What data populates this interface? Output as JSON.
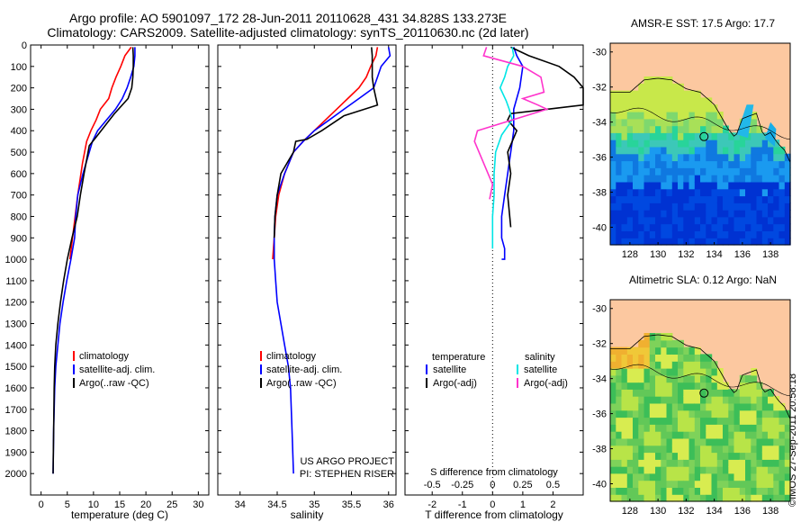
{
  "header": {
    "line1": "Argo profile: AO 5901097_172 28-Jun-2011 20110628_431 34.828S 133.273E",
    "line2": "Climatology: CARS2009. Satellite-adjusted climatology: synTS_20110630.nc (2d later)"
  },
  "stamp": "©IMOS 27-Sep-2011 20:58:18",
  "colors": {
    "climatology": "#ff0000",
    "satellite": "#0000ff",
    "argo": "#000000",
    "sal_satellite": "#00e5e5",
    "sal_argo": "#ff33cc",
    "land": "#fcc8a0"
  },
  "chart_data": [
    {
      "type": "line",
      "title": "",
      "xlabel": "temperature (deg C)",
      "ylabel": "",
      "xlim": [
        -2,
        32
      ],
      "ylim": [
        2100,
        0
      ],
      "y_axis_inverted": true,
      "xticks": [
        0,
        5,
        10,
        15,
        20,
        25,
        30
      ],
      "yticks": [
        0,
        100,
        200,
        300,
        400,
        500,
        600,
        700,
        800,
        900,
        1000,
        1100,
        1200,
        1300,
        1400,
        1500,
        1600,
        1700,
        1800,
        1900,
        2000
      ],
      "legend": [
        "climatology",
        "satellite-adj. clim.",
        "Argo(..raw -QC)"
      ],
      "series": [
        {
          "name": "climatology",
          "color": "red",
          "x": [
            17.2,
            16.0,
            15.2,
            14.3,
            13.5,
            12.9,
            11.3,
            10.5,
            9.5,
            8.7,
            7.9,
            7.0,
            6.5,
            5.5
          ],
          "y": [
            10,
            50,
            100,
            150,
            200,
            250,
            300,
            350,
            400,
            450,
            550,
            700,
            800,
            1000
          ]
        },
        {
          "name": "satellite-adj. clim.",
          "color": "blue",
          "x": [
            17.9,
            17.9,
            17.7,
            17.1,
            16.4,
            15.5,
            14.2,
            12.5,
            10.8,
            9.8,
            8.0,
            7.0,
            6.6,
            6.4,
            5.7,
            4.9,
            4.2,
            3.6,
            3.2,
            2.8,
            2.6,
            2.4,
            2.3
          ],
          "y": [
            10,
            50,
            100,
            150,
            200,
            250,
            300,
            350,
            400,
            450,
            600,
            700,
            800,
            900,
            1000,
            1100,
            1200,
            1300,
            1400,
            1500,
            1600,
            1800,
            2000
          ]
        },
        {
          "name": "Argo(..raw -QC)",
          "color": "black",
          "x": [
            17.5,
            17.6,
            17.6,
            17.5,
            17.3,
            16.6,
            14.0,
            10.5,
            9.2,
            8.2,
            7.5,
            6.9,
            5.9,
            5.0,
            4.3,
            3.7,
            3.2,
            2.8,
            2.6,
            2.5,
            2.4,
            2.3
          ],
          "y": [
            10,
            50,
            100,
            150,
            200,
            250,
            320,
            430,
            470,
            600,
            700,
            800,
            900,
            1000,
            1100,
            1200,
            1300,
            1400,
            1500,
            1600,
            1800,
            2000
          ]
        }
      ],
      "annotations": []
    },
    {
      "type": "line",
      "title": "",
      "xlabel": "salinity",
      "ylabel": "",
      "xlim": [
        33.7,
        36.1
      ],
      "ylim": [
        2100,
        0
      ],
      "y_axis_inverted": true,
      "xticks": [
        34,
        34.5,
        35,
        35.5,
        36
      ],
      "legend": [
        "climatology",
        "satellite-adj. clim.",
        "Argo(..raw -QC)"
      ],
      "series": [
        {
          "name": "climatology",
          "color": "red",
          "x": [
            35.85,
            35.83,
            35.76,
            35.7,
            35.6,
            35.45,
            35.3,
            35.15,
            35.0,
            34.85,
            34.72,
            34.6,
            34.52,
            34.48,
            34.46,
            34.44
          ],
          "y": [
            10,
            50,
            100,
            150,
            200,
            250,
            300,
            350,
            400,
            450,
            500,
            600,
            700,
            800,
            900,
            1000
          ]
        },
        {
          "name": "satellite-adj. clim.",
          "color": "blue",
          "x": [
            36.0,
            36.02,
            35.9,
            35.85,
            35.8,
            35.6,
            35.4,
            35.2,
            35.0,
            34.85,
            34.72,
            34.6,
            34.5,
            34.47,
            34.46,
            34.46,
            34.48,
            34.5,
            34.55,
            34.6,
            34.65,
            34.68,
            34.7,
            34.72
          ],
          "y": [
            10,
            50,
            100,
            150,
            200,
            250,
            300,
            350,
            400,
            450,
            500,
            600,
            700,
            800,
            900,
            1000,
            1100,
            1200,
            1300,
            1400,
            1500,
            1600,
            1800,
            2000
          ]
        },
        {
          "name": "Argo(..raw -QC)",
          "color": "black",
          "x": [
            35.77,
            35.78,
            35.78,
            35.78,
            35.8,
            35.85,
            35.4,
            35.1,
            34.9,
            34.75,
            34.72,
            34.55,
            34.5,
            34.47,
            34.46
          ],
          "y": [
            10,
            50,
            100,
            150,
            200,
            280,
            330,
            400,
            440,
            450,
            500,
            600,
            700,
            800,
            900
          ]
        }
      ],
      "annotations": [
        "US ARGO PROJECT",
        "PI: STEPHEN RISER"
      ]
    },
    {
      "type": "line",
      "title": "",
      "xlabel": "T difference from climatology",
      "xlabel2": "S difference from climatology",
      "ylabel": "",
      "xlim": [
        -2.9,
        3.0
      ],
      "ylim": [
        2100,
        0
      ],
      "y_axis_inverted": true,
      "xticks": [
        -2,
        -1,
        0,
        1,
        2
      ],
      "xticks_top": [
        "-0.5",
        "-0.25",
        "0",
        "0.25",
        "0.5"
      ],
      "legend_headers": [
        "temperature",
        "salinity"
      ],
      "legend": [
        "satellite",
        "Argo(-adj)",
        "satellite",
        "Argo(-adj)"
      ],
      "series": [
        {
          "name": "satellite",
          "group": "temperature",
          "color": "blue",
          "x": [
            0.7,
            0.8,
            1.0,
            0.9,
            0.7,
            0.7,
            0.6,
            0.5,
            0.4,
            0.3,
            0.3,
            0.4,
            0.4,
            0.3
          ],
          "y": [
            10,
            50,
            100,
            200,
            300,
            400,
            500,
            600,
            700,
            800,
            900,
            950,
            1000,
            1000
          ]
        },
        {
          "name": "Argo(-adj)",
          "group": "temperature",
          "color": "black",
          "x": [
            0.6,
            1.2,
            2.2,
            2.7,
            3.0,
            3.0,
            1.8,
            0.6,
            0.5,
            0.8,
            0.5,
            0.6,
            0.5,
            0.6
          ],
          "y": [
            10,
            50,
            100,
            150,
            200,
            280,
            300,
            320,
            350,
            400,
            500,
            600,
            700,
            850
          ]
        },
        {
          "name": "satellite",
          "group": "salinity",
          "color": "cyan",
          "x": [
            0.65,
            0.7,
            0.5,
            0.4,
            0.25,
            0.45,
            0.55,
            0.65,
            0.3,
            0.1,
            0.05,
            0.05,
            0.0,
            0.0
          ],
          "y": [
            10,
            50,
            100,
            150,
            200,
            260,
            300,
            350,
            420,
            500,
            600,
            700,
            800,
            950
          ]
        },
        {
          "name": "Argo(-adj)",
          "group": "salinity",
          "color": "magenta",
          "x": [
            -0.2,
            -0.3,
            1.0,
            1.6,
            1.7,
            1.0,
            1.5,
            1.8,
            -0.5,
            -0.6,
            0.0,
            -0.1
          ],
          "y": [
            10,
            50,
            100,
            150,
            220,
            250,
            280,
            300,
            400,
            450,
            650,
            720
          ]
        }
      ],
      "annotations": []
    },
    {
      "type": "heatmap",
      "title": "AMSR-E SST: 17.5 Argo: 17.7",
      "xlim": [
        126.6,
        139.4
      ],
      "ylim": [
        -41,
        -29.5
      ],
      "xticks": [
        128,
        130,
        132,
        134,
        136,
        138
      ],
      "yticks": [
        -30,
        -32,
        -34,
        -36,
        -38,
        -40
      ],
      "marker": {
        "lon": 133.273,
        "lat": -34.828
      }
    },
    {
      "type": "heatmap",
      "title": "Altimetric SLA: 0.12 Argo: NaN",
      "xlim": [
        126.6,
        139.4
      ],
      "ylim": [
        -41,
        -29.5
      ],
      "xticks": [
        128,
        130,
        132,
        134,
        136,
        138
      ],
      "yticks": [
        -30,
        -32,
        -34,
        -36,
        -38,
        -40
      ],
      "marker": {
        "lon": 133.273,
        "lat": -34.828
      }
    }
  ]
}
